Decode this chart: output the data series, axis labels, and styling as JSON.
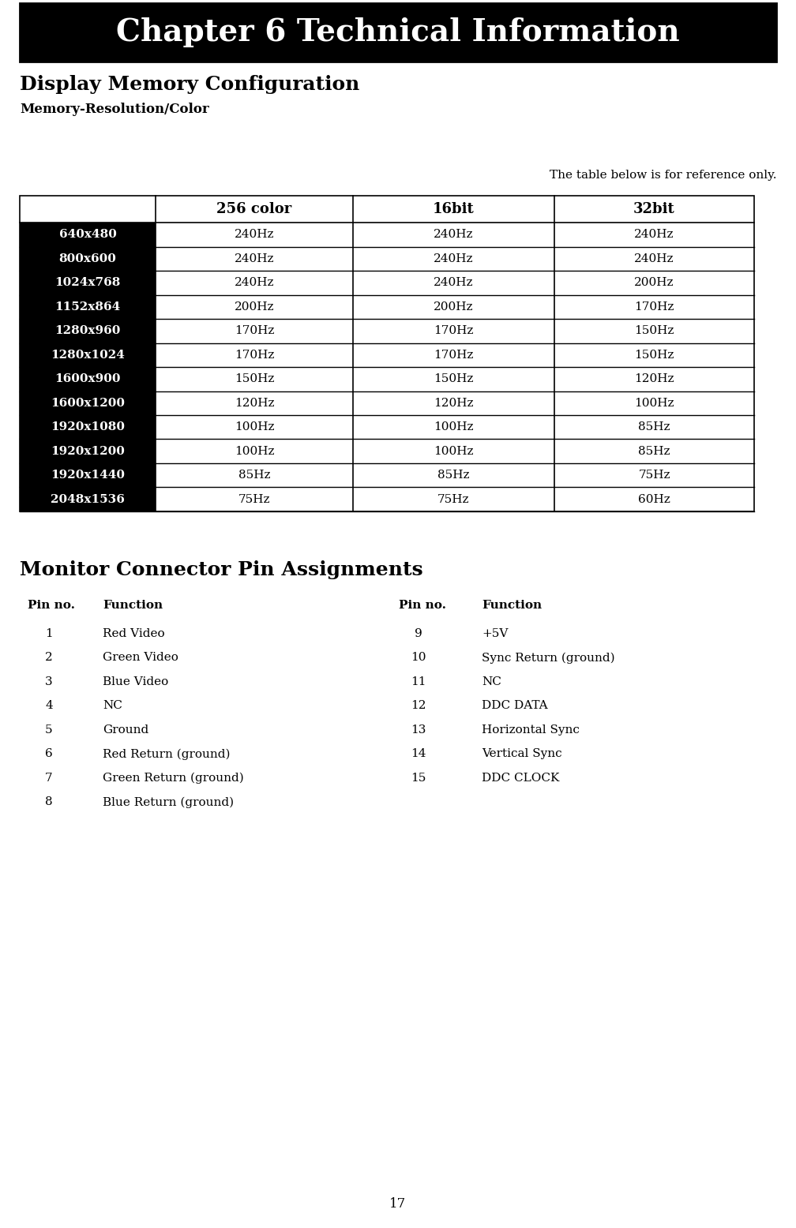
{
  "chapter_title": "Chapter 6 Technical Information",
  "section1_title": "Display Memory Configuration",
  "section1_subtitle": "Memory-Resolution/Color",
  "table_note": "The table below is for reference only.",
  "table_headers": [
    "",
    "256 color",
    "16bit",
    "32bit"
  ],
  "table_rows": [
    [
      "640x480",
      "240Hz",
      "240Hz",
      "240Hz"
    ],
    [
      "800x600",
      "240Hz",
      "240Hz",
      "240Hz"
    ],
    [
      "1024x768",
      "240Hz",
      "240Hz",
      "200Hz"
    ],
    [
      "1152x864",
      "200Hz",
      "200Hz",
      "170Hz"
    ],
    [
      "1280x960",
      "170Hz",
      "170Hz",
      "150Hz"
    ],
    [
      "1280x1024",
      "170Hz",
      "170Hz",
      "150Hz"
    ],
    [
      "1600x900",
      "150Hz",
      "150Hz",
      "120Hz"
    ],
    [
      "1600x1200",
      "120Hz",
      "120Hz",
      "100Hz"
    ],
    [
      "1920x1080",
      "100Hz",
      "100Hz",
      "85Hz"
    ],
    [
      "1920x1200",
      "100Hz",
      "100Hz",
      "85Hz"
    ],
    [
      "1920x1440",
      "85Hz",
      "85Hz",
      "75Hz"
    ],
    [
      "2048x1536",
      "75Hz",
      "75Hz",
      "60Hz"
    ]
  ],
  "section2_title": "Monitor Connector Pin Assignments",
  "pins_left": [
    [
      "1",
      "Red Video"
    ],
    [
      "2",
      "Green Video"
    ],
    [
      "3",
      "Blue Video"
    ],
    [
      "4",
      "NC"
    ],
    [
      "5",
      "Ground"
    ],
    [
      "6",
      "Red Return (ground)"
    ],
    [
      "7",
      "Green Return (ground)"
    ],
    [
      "8",
      "Blue Return (ground)"
    ]
  ],
  "pins_right": [
    [
      "9",
      "+5V"
    ],
    [
      "10",
      "Sync Return (ground)"
    ],
    [
      "11",
      "NC"
    ],
    [
      "12",
      "DDC DATA"
    ],
    [
      "13",
      "Horizontal Sync"
    ],
    [
      "14",
      "Vertical Sync"
    ],
    [
      "15",
      "DDC CLOCK"
    ]
  ],
  "page_number": "17",
  "bg_color": "#ffffff",
  "header_bg": "#000000",
  "header_fg": "#ffffff",
  "row_label_bg": "#000000",
  "row_label_fg": "#ffffff",
  "table_border": "#000000",
  "body_text": "#000000",
  "fig_w": 10.08,
  "fig_h": 15.56,
  "dpi": 100
}
